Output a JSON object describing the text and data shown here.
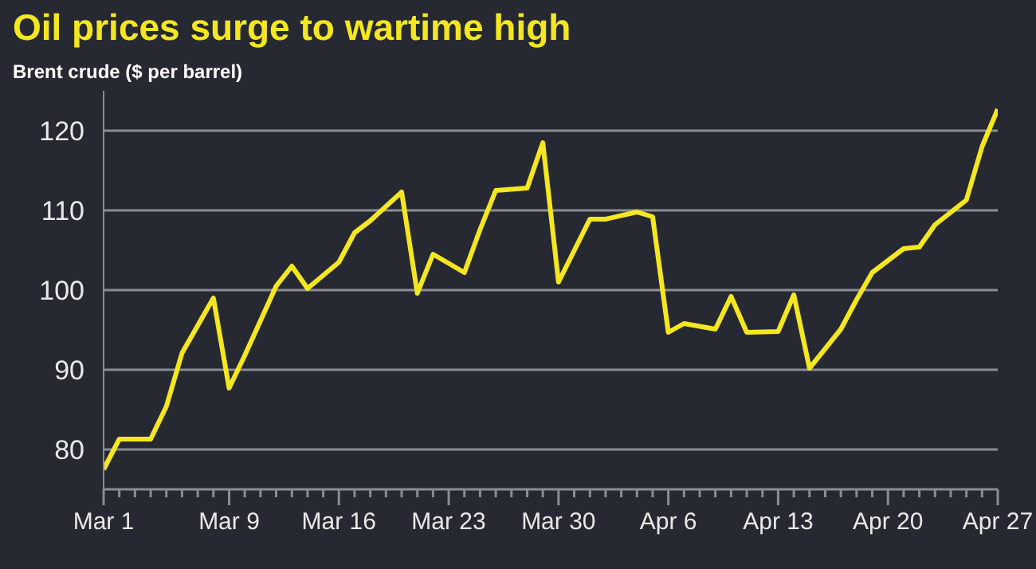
{
  "chart_data": {
    "type": "line",
    "title": "Oil prices surge to wartime high",
    "subtitle": "Brent crude ($ per barrel)",
    "x": [
      "--03-01",
      "--03-02",
      "--03-04",
      "--03-05",
      "--03-06",
      "--03-08",
      "--03-09",
      "--03-10",
      "--03-12",
      "--03-13",
      "--03-14",
      "--03-16",
      "--03-17",
      "--03-18",
      "--03-20",
      "--03-21",
      "--03-22",
      "--03-24",
      "--03-25",
      "--03-26",
      "--03-28",
      "--03-29",
      "--03-30",
      "--04-01",
      "--04-02",
      "--04-04",
      "--04-05",
      "--04-06",
      "--04-07",
      "--04-09",
      "--04-10",
      "--04-11",
      "--04-13",
      "--04-14",
      "--04-15",
      "--04-17",
      "--04-18",
      "--04-19",
      "--04-21",
      "--04-22",
      "--04-23",
      "--04-25",
      "--04-26",
      "--04-27"
    ],
    "series": [
      {
        "color": "#f5e71f",
        "values": [
          77.5,
          81.3,
          81.3,
          85.4,
          92.1,
          99.0,
          87.7,
          91.8,
          100.5,
          103.0,
          100.2,
          103.5,
          107.2,
          108.7,
          112.3,
          99.6,
          104.5,
          102.2,
          107.6,
          112.5,
          112.8,
          118.5,
          101.0,
          108.9,
          108.9,
          109.8,
          109.2,
          94.7,
          95.8,
          95.1,
          99.2,
          94.7,
          94.8,
          99.4,
          90.2,
          95.1,
          98.8,
          102.2,
          105.2,
          105.4,
          108.2,
          111.3,
          118.0,
          122.7
        ]
      }
    ],
    "xlim": [
      "--03-01",
      "--04-27"
    ],
    "xticks": [
      {
        "value": "--03-01",
        "label": "Mar 1"
      },
      {
        "value": "--03-02",
        "label": null
      },
      {
        "value": "--03-03",
        "label": null
      },
      {
        "value": "--03-04",
        "label": null
      },
      {
        "value": "--03-05",
        "label": null
      },
      {
        "value": "--03-06",
        "label": null
      },
      {
        "value": "--03-07",
        "label": null
      },
      {
        "value": "--03-08",
        "label": null
      },
      {
        "value": "--03-09",
        "label": "Mar 9"
      },
      {
        "value": "--03-10",
        "label": null
      },
      {
        "value": "--03-11",
        "label": null
      },
      {
        "value": "--03-12",
        "label": null
      },
      {
        "value": "--03-13",
        "label": null
      },
      {
        "value": "--03-14",
        "label": null
      },
      {
        "value": "--03-15",
        "label": null
      },
      {
        "value": "--03-16",
        "label": "Mar 16"
      },
      {
        "value": "--03-17",
        "label": null
      },
      {
        "value": "--03-18",
        "label": null
      },
      {
        "value": "--03-19",
        "label": null
      },
      {
        "value": "--03-20",
        "label": null
      },
      {
        "value": "--03-21",
        "label": null
      },
      {
        "value": "--03-22",
        "label": null
      },
      {
        "value": "--03-23",
        "label": "Mar 23"
      },
      {
        "value": "--03-24",
        "label": null
      },
      {
        "value": "--03-25",
        "label": null
      },
      {
        "value": "--03-26",
        "label": null
      },
      {
        "value": "--03-27",
        "label": null
      },
      {
        "value": "--03-28",
        "label": null
      },
      {
        "value": "--03-29",
        "label": null
      },
      {
        "value": "--03-30",
        "label": "Mar 30"
      },
      {
        "value": "--03-31",
        "label": null
      },
      {
        "value": "--04-01",
        "label": null
      },
      {
        "value": "--04-02",
        "label": null
      },
      {
        "value": "--04-03",
        "label": null
      },
      {
        "value": "--04-04",
        "label": null
      },
      {
        "value": "--04-05",
        "label": null
      },
      {
        "value": "--04-06",
        "label": "Apr 6"
      },
      {
        "value": "--04-07",
        "label": null
      },
      {
        "value": "--04-08",
        "label": null
      },
      {
        "value": "--04-09",
        "label": null
      },
      {
        "value": "--04-10",
        "label": null
      },
      {
        "value": "--04-11",
        "label": null
      },
      {
        "value": "--04-12",
        "label": null
      },
      {
        "value": "--04-13",
        "label": "Apr 13"
      },
      {
        "value": "--04-14",
        "label": null
      },
      {
        "value": "--04-15",
        "label": null
      },
      {
        "value": "--04-16",
        "label": null
      },
      {
        "value": "--04-17",
        "label": null
      },
      {
        "value": "--04-18",
        "label": null
      },
      {
        "value": "--04-19",
        "label": null
      },
      {
        "value": "--04-20",
        "label": "Apr 20"
      },
      {
        "value": "--04-21",
        "label": null
      },
      {
        "value": "--04-22",
        "label": null
      },
      {
        "value": "--04-23",
        "label": null
      },
      {
        "value": "--04-24",
        "label": null
      },
      {
        "value": "--04-25",
        "label": null
      },
      {
        "value": "--04-26",
        "label": null
      },
      {
        "value": "--04-27",
        "label": "Apr 27"
      }
    ],
    "ylim": [
      75,
      125
    ],
    "yticks": [
      80,
      90,
      100,
      110,
      120
    ],
    "grid": "y",
    "marker": "none",
    "line_style": "solid"
  }
}
